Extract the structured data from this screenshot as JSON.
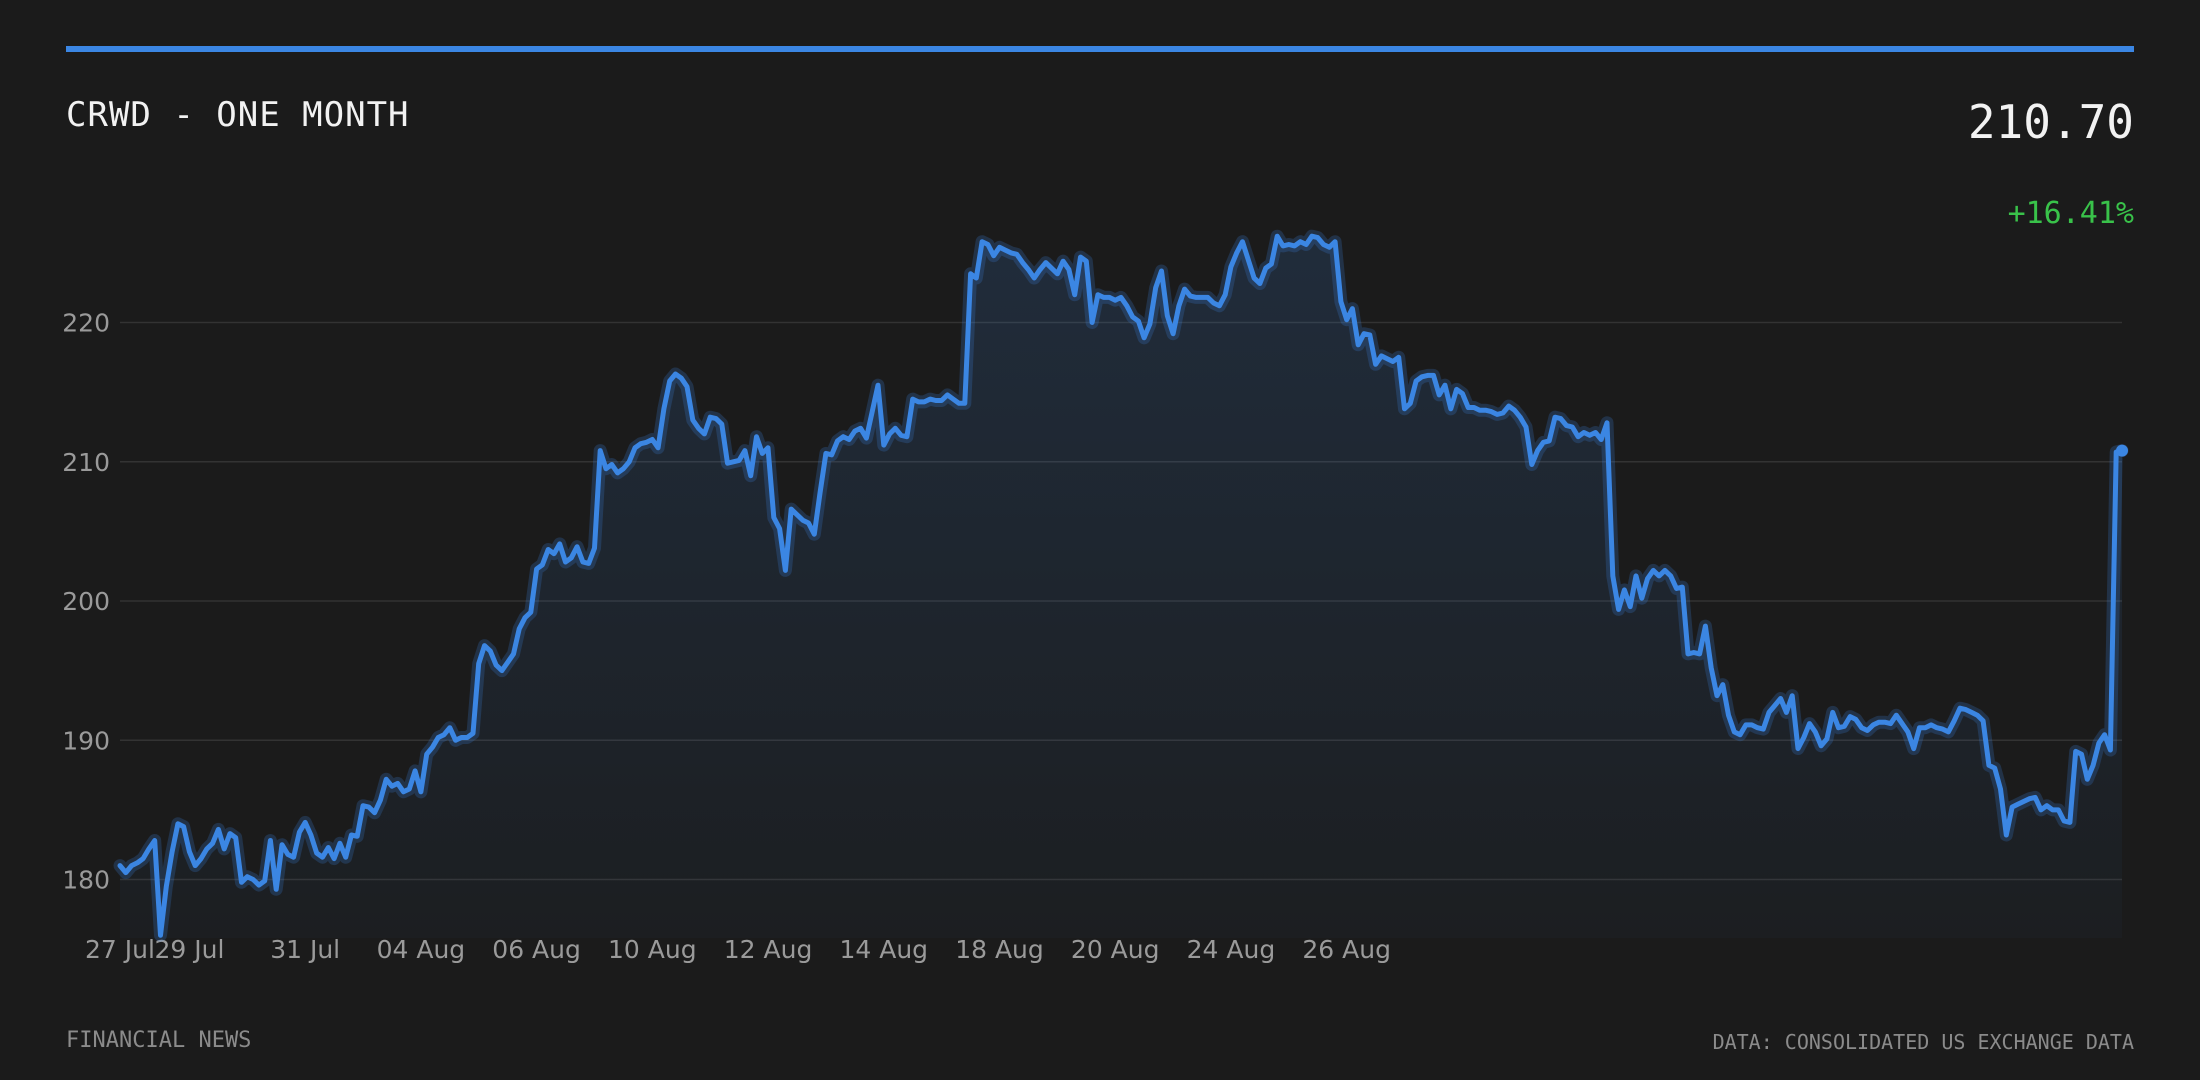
{
  "header": {
    "title": "CRWD - ONE MONTH",
    "price": "210.70",
    "change": "+16.41%"
  },
  "footer": {
    "source": "FINANCIAL NEWS",
    "data_note": "DATA: CONSOLIDATED US EXCHANGE DATA"
  },
  "colors": {
    "background": "#1b1b1b",
    "accent": "#3b86e3",
    "positive": "#39c24a",
    "grid": "#333333",
    "tick_text": "#9a9a9a"
  },
  "chart_data": {
    "type": "area",
    "title": "CRWD - ONE MONTH",
    "xlabel": "",
    "ylabel": "",
    "ylim": [
      175.8,
      226.5
    ],
    "yticks": [
      180,
      190,
      200,
      210,
      220
    ],
    "grid": true,
    "x_tick_labels": [
      "27 Jul",
      "29 Jul",
      "31 Jul",
      "04 Aug",
      "06 Aug",
      "10 Aug",
      "12 Aug",
      "14 Aug",
      "18 Aug",
      "20 Aug",
      "24 Aug",
      "26 Aug"
    ],
    "x_tick_index": [
      0,
      12,
      32,
      52,
      72,
      92,
      112,
      132,
      152,
      172,
      192,
      212
    ],
    "values": [
      181.0,
      180.5,
      181.0,
      181.2,
      181.5,
      182.2,
      182.8,
      176.0,
      179.5,
      182.0,
      184.0,
      183.8,
      182.0,
      181.0,
      181.5,
      182.2,
      182.6,
      183.6,
      182.2,
      183.3,
      183.0,
      179.8,
      180.2,
      180.0,
      179.6,
      179.9,
      182.8,
      179.3,
      182.5,
      181.8,
      181.6,
      183.4,
      184.1,
      183.2,
      181.9,
      181.6,
      182.3,
      181.5,
      182.6,
      181.6,
      183.2,
      183.1,
      185.3,
      185.2,
      184.8,
      185.7,
      187.2,
      186.7,
      186.9,
      186.3,
      186.5,
      187.8,
      186.3,
      189.0,
      189.5,
      190.2,
      190.4,
      190.9,
      190.0,
      190.2,
      190.2,
      190.5,
      195.5,
      196.8,
      196.4,
      195.4,
      195.0,
      195.6,
      196.2,
      198.0,
      198.8,
      199.2,
      202.3,
      202.6,
      203.7,
      203.4,
      204.1,
      202.8,
      203.1,
      203.9,
      202.8,
      202.7,
      203.8,
      210.8,
      209.5,
      209.8,
      209.2,
      209.5,
      210.0,
      211.0,
      211.3,
      211.4,
      211.6,
      211.0,
      213.8,
      215.8,
      216.3,
      216.0,
      215.4,
      213.0,
      212.4,
      212.0,
      213.2,
      213.1,
      212.7,
      209.9,
      210.0,
      210.1,
      210.8,
      209.0,
      211.8,
      210.6,
      211.0,
      206.0,
      205.2,
      202.2,
      206.6,
      206.2,
      205.8,
      205.6,
      204.8,
      207.8,
      210.6,
      210.5,
      211.5,
      211.8,
      211.6,
      212.2,
      212.4,
      211.7,
      213.6,
      215.5,
      211.2,
      212.0,
      212.4,
      211.9,
      211.8,
      214.5,
      214.3,
      214.3,
      214.5,
      214.4,
      214.4,
      214.8,
      214.5,
      214.2,
      214.2,
      223.5,
      223.2,
      225.8,
      225.6,
      224.8,
      225.4,
      225.2,
      225.0,
      224.9,
      224.3,
      223.8,
      223.2,
      223.8,
      224.3,
      223.9,
      223.5,
      224.4,
      223.8,
      222.0,
      224.7,
      224.4,
      220.0,
      222.0,
      221.8,
      221.8,
      221.6,
      221.8,
      221.2,
      220.4,
      220.1,
      218.9,
      219.9,
      222.5,
      223.7,
      220.5,
      219.2,
      221.2,
      222.4,
      221.9,
      221.8,
      221.8,
      221.8,
      221.4,
      221.2,
      222.0,
      224.0,
      225.0,
      225.8,
      224.5,
      223.2,
      222.8,
      223.9,
      224.2,
      226.2,
      225.5,
      225.6,
      225.5,
      225.8,
      225.6,
      226.2,
      226.1,
      225.6,
      225.4,
      225.8,
      221.5,
      220.2,
      221.0,
      218.4,
      219.2,
      219.1,
      217.0,
      217.6,
      217.4,
      217.2,
      217.5,
      213.8,
      214.2,
      215.8,
      216.1,
      216.2,
      216.2,
      214.8,
      215.5,
      213.8,
      215.2,
      214.9,
      213.9,
      213.9,
      213.7,
      213.7,
      213.6,
      213.4,
      213.5,
      214.0,
      213.7,
      213.2,
      212.5,
      209.8,
      210.8,
      211.4,
      211.5,
      213.2,
      213.1,
      212.6,
      212.5,
      211.8,
      212.1,
      211.9,
      212.1,
      211.6,
      212.8,
      201.8,
      199.4,
      200.8,
      199.6,
      201.8,
      200.2,
      201.6,
      202.2,
      201.8,
      202.2,
      201.8,
      200.9,
      201.0,
      196.2,
      196.3,
      196.2,
      198.2,
      195.2,
      193.2,
      194.0,
      191.8,
      190.6,
      190.4,
      191.1,
      191.1,
      190.9,
      190.8,
      192.0,
      192.5,
      193.0,
      192.0,
      193.2,
      189.4,
      190.2,
      191.2,
      190.6,
      189.6,
      190.1,
      192.0,
      190.9,
      191.0,
      191.7,
      191.5,
      190.9,
      190.7,
      191.1,
      191.3,
      191.3,
      191.2,
      191.8,
      191.2,
      190.6,
      189.4,
      190.9,
      190.9,
      191.1,
      190.9,
      190.8,
      190.6,
      191.4,
      192.3,
      192.2,
      192.0,
      191.8,
      191.4,
      188.2,
      188.0,
      186.5,
      183.2,
      185.2,
      185.4,
      185.6,
      185.8,
      185.9,
      185.0,
      185.3,
      185.0,
      185.0,
      184.2,
      184.1,
      189.2,
      189.0,
      187.2,
      188.2,
      189.8,
      190.4,
      189.3,
      210.7,
      210.8
    ]
  }
}
